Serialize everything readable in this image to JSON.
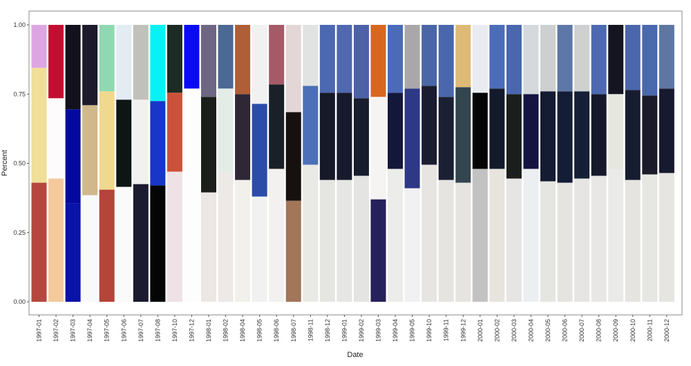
{
  "chart_data": {
    "type": "bar",
    "stacked": true,
    "xlabel": "Date",
    "ylabel": "Percent",
    "ylim": [
      0,
      1
    ],
    "yticks": [
      "0.00",
      "0.25",
      "0.50",
      "0.75",
      "1.00"
    ],
    "yticks_values": [
      0,
      0.25,
      0.5,
      0.75,
      1
    ],
    "grid": false,
    "legend": "none",
    "categories": [
      "1997-01",
      "1997-02",
      "1997-03",
      "1997-04",
      "1997-05",
      "1997-06",
      "1997-07",
      "1997-08",
      "1997-10",
      "1997-12",
      "1998-01",
      "1998-02",
      "1998-04",
      "1998-05",
      "1998-06",
      "1998-07",
      "1998-11",
      "1998-12",
      "1999-01",
      "1999-02",
      "1999-03",
      "1999-04",
      "1999-05",
      "1999-10",
      "1999-11",
      "1999-12",
      "2000-01",
      "2000-02",
      "2000-03",
      "2000-04",
      "2000-05",
      "2000-06",
      "2000-07",
      "2000-08",
      "2000-09",
      "2000-10",
      "2000-11",
      "2000-12"
    ],
    "bars": [
      {
        "segments": [
          {
            "value": 0.43,
            "color": "#b5473f"
          },
          {
            "value": 0.415,
            "color": "#efdf97"
          },
          {
            "value": 0.155,
            "color": "#dda6e2"
          }
        ]
      },
      {
        "segments": [
          {
            "value": 0.445,
            "color": "#f4c99c"
          },
          {
            "value": 0.29,
            "color": "#fdfbfb"
          },
          {
            "value": 0.265,
            "color": "#c20e31"
          }
        ]
      },
      {
        "segments": [
          {
            "value": 0.355,
            "color": "#0813a8"
          },
          {
            "value": 0.34,
            "color": "#04099e"
          },
          {
            "value": 0.305,
            "color": "#12111c"
          }
        ]
      },
      {
        "segments": [
          {
            "value": 0.385,
            "color": "#f8f9fa"
          },
          {
            "value": 0.325,
            "color": "#d0b88c"
          },
          {
            "value": 0.29,
            "color": "#1d1a2b"
          }
        ]
      },
      {
        "segments": [
          {
            "value": 0.405,
            "color": "#b5443a"
          },
          {
            "value": 0.355,
            "color": "#f0d98e"
          },
          {
            "value": 0.24,
            "color": "#90d8b2"
          }
        ]
      },
      {
        "segments": [
          {
            "value": 0.415,
            "color": "#fbfafb"
          },
          {
            "value": 0.315,
            "color": "#0e1615"
          },
          {
            "value": 0.27,
            "color": "#e3ebf3"
          }
        ]
      },
      {
        "segments": [
          {
            "value": 0.425,
            "color": "#1c1b2f"
          },
          {
            "value": 0.305,
            "color": "#f1f1f0"
          },
          {
            "value": 0.27,
            "color": "#c1c0ba"
          }
        ]
      },
      {
        "segments": [
          {
            "value": 0.42,
            "color": "#050505"
          },
          {
            "value": 0.305,
            "color": "#1836c8"
          },
          {
            "value": 0.275,
            "color": "#08f2f6"
          }
        ]
      },
      {
        "segments": [
          {
            "value": 0.47,
            "color": "#efe2e6"
          },
          {
            "value": 0.285,
            "color": "#cb523a"
          },
          {
            "value": 0.245,
            "color": "#1c2b23"
          }
        ]
      },
      {
        "segments": [
          {
            "value": 0.77,
            "color": "#fdfdfd"
          },
          {
            "value": 0.23,
            "color": "#0a0af7"
          }
        ]
      },
      {
        "segments": [
          {
            "value": 0.395,
            "color": "#ece7e4"
          },
          {
            "value": 0.345,
            "color": "#1b1e1a"
          },
          {
            "value": 0.26,
            "color": "#6d6784"
          }
        ]
      },
      {
        "segments": [
          {
            "value": 0.47,
            "color": "#ece9e7"
          },
          {
            "value": 0.3,
            "color": "#e3ece6"
          },
          {
            "value": 0.23,
            "color": "#4b6994"
          }
        ]
      },
      {
        "segments": [
          {
            "value": 0.44,
            "color": "#f1f0ea"
          },
          {
            "value": 0.31,
            "color": "#2f2736"
          },
          {
            "value": 0.25,
            "color": "#b05e37"
          }
        ]
      },
      {
        "segments": [
          {
            "value": 0.38,
            "color": "#f1f1f1"
          },
          {
            "value": 0.335,
            "color": "#2b4ca9"
          },
          {
            "value": 0.285,
            "color": "#f1f1f1"
          }
        ]
      },
      {
        "segments": [
          {
            "value": 0.48,
            "color": "#f2f1ef"
          },
          {
            "value": 0.305,
            "color": "#1a2027"
          },
          {
            "value": 0.215,
            "color": "#a45a67"
          }
        ]
      },
      {
        "segments": [
          {
            "value": 0.365,
            "color": "#a37559"
          },
          {
            "value": 0.32,
            "color": "#16110f"
          },
          {
            "value": 0.315,
            "color": "#e2d6d6"
          }
        ]
      },
      {
        "segments": [
          {
            "value": 0.495,
            "color": "#e9e9e6"
          },
          {
            "value": 0.285,
            "color": "#4b70b7"
          },
          {
            "value": 0.22,
            "color": "#e1e3e2"
          }
        ]
      },
      {
        "segments": [
          {
            "value": 0.44,
            "color": "#e5e5e2"
          },
          {
            "value": 0.315,
            "color": "#161927"
          },
          {
            "value": 0.245,
            "color": "#4c68b0"
          }
        ]
      },
      {
        "segments": [
          {
            "value": 0.44,
            "color": "#e6e6e4"
          },
          {
            "value": 0.315,
            "color": "#161a2c"
          },
          {
            "value": 0.245,
            "color": "#4f68b0"
          }
        ]
      },
      {
        "segments": [
          {
            "value": 0.455,
            "color": "#e4e4e3"
          },
          {
            "value": 0.28,
            "color": "#171d2d"
          },
          {
            "value": 0.265,
            "color": "#4d61a8"
          }
        ]
      },
      {
        "segments": [
          {
            "value": 0.37,
            "color": "#27225b"
          },
          {
            "value": 0.37,
            "color": "#f6f3f3"
          },
          {
            "value": 0.26,
            "color": "#d9661f"
          }
        ]
      },
      {
        "segments": [
          {
            "value": 0.48,
            "color": "#ececea"
          },
          {
            "value": 0.275,
            "color": "#13173a"
          },
          {
            "value": 0.245,
            "color": "#4b6ab8"
          }
        ]
      },
      {
        "segments": [
          {
            "value": 0.41,
            "color": "#f1f1f3"
          },
          {
            "value": 0.36,
            "color": "#2d3985"
          },
          {
            "value": 0.23,
            "color": "#a9a7aa"
          }
        ]
      },
      {
        "segments": [
          {
            "value": 0.495,
            "color": "#e6e5e1"
          },
          {
            "value": 0.285,
            "color": "#1a1d30"
          },
          {
            "value": 0.22,
            "color": "#4b66a6"
          }
        ]
      },
      {
        "segments": [
          {
            "value": 0.44,
            "color": "#e5e4e1"
          },
          {
            "value": 0.3,
            "color": "#1a1f33"
          },
          {
            "value": 0.26,
            "color": "#4a67ae"
          }
        ]
      },
      {
        "segments": [
          {
            "value": 0.43,
            "color": "#e5e4e0"
          },
          {
            "value": 0.345,
            "color": "#33454d"
          },
          {
            "value": 0.225,
            "color": "#deba77"
          }
        ]
      },
      {
        "segments": [
          {
            "value": 0.48,
            "color": "#c2c2c2"
          },
          {
            "value": 0.275,
            "color": "#050505"
          },
          {
            "value": 0.245,
            "color": "#e9ebf1"
          }
        ]
      },
      {
        "segments": [
          {
            "value": 0.48,
            "color": "#e7e4dd"
          },
          {
            "value": 0.29,
            "color": "#131a2b"
          },
          {
            "value": 0.23,
            "color": "#4b6db8"
          }
        ]
      },
      {
        "segments": [
          {
            "value": 0.445,
            "color": "#e6e5e3"
          },
          {
            "value": 0.305,
            "color": "#1a1f1d"
          },
          {
            "value": 0.25,
            "color": "#4a66ad"
          }
        ]
      },
      {
        "segments": [
          {
            "value": 0.48,
            "color": "#eceff1"
          },
          {
            "value": 0.27,
            "color": "#141442"
          },
          {
            "value": 0.25,
            "color": "#d5d9db"
          }
        ]
      },
      {
        "segments": [
          {
            "value": 0.435,
            "color": "#e5e5e1"
          },
          {
            "value": 0.325,
            "color": "#141c33"
          },
          {
            "value": 0.24,
            "color": "#cdd0d0"
          }
        ]
      },
      {
        "segments": [
          {
            "value": 0.43,
            "color": "#e5e4e1"
          },
          {
            "value": 0.33,
            "color": "#141d36"
          },
          {
            "value": 0.24,
            "color": "#5d78a8"
          }
        ]
      },
      {
        "segments": [
          {
            "value": 0.445,
            "color": "#e7e5e3"
          },
          {
            "value": 0.315,
            "color": "#152036"
          },
          {
            "value": 0.24,
            "color": "#cfd1d1"
          }
        ]
      },
      {
        "segments": [
          {
            "value": 0.455,
            "color": "#e8e7e6"
          },
          {
            "value": 0.295,
            "color": "#16192c"
          },
          {
            "value": 0.25,
            "color": "#4d6ab1"
          }
        ]
      },
      {
        "segments": [
          {
            "value": 0.48,
            "color": "#eaeae8"
          },
          {
            "value": 0.27,
            "color": "#e6e7df"
          },
          {
            "value": 0.25,
            "color": "#151522"
          }
        ]
      },
      {
        "segments": [
          {
            "value": 0.44,
            "color": "#e5e4e1"
          },
          {
            "value": 0.325,
            "color": "#171d31"
          },
          {
            "value": 0.235,
            "color": "#4a67ac"
          }
        ]
      },
      {
        "segments": [
          {
            "value": 0.46,
            "color": "#e6e6e3"
          },
          {
            "value": 0.285,
            "color": "#1a1a2a"
          },
          {
            "value": 0.255,
            "color": "#4a68ad"
          }
        ]
      },
      {
        "segments": [
          {
            "value": 0.465,
            "color": "#e6e5e2"
          },
          {
            "value": 0.305,
            "color": "#171a2f"
          },
          {
            "value": 0.23,
            "color": "#5e77a2"
          }
        ]
      }
    ]
  }
}
